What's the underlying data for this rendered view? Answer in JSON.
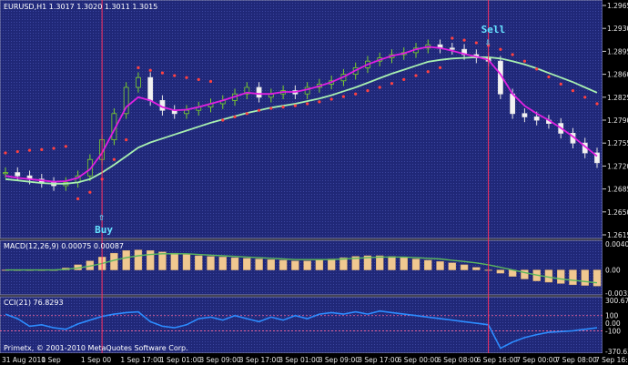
{
  "chart_data": [
    {
      "type": "candlestick",
      "panel": "main",
      "header": "EURUSD,H1  1.3017 1.3020 1.3011 1.3015",
      "price_ticks": [
        "1.2965",
        "1.2930",
        "1.2895",
        "1.2860",
        "1.2825",
        "1.2790",
        "1.2755",
        "1.2720",
        "1.2685",
        "1.2650",
        "1.2615"
      ],
      "ylim": [
        1.2615,
        1.2965
      ],
      "close": [
        1.271,
        1.2705,
        1.27,
        1.2695,
        1.269,
        1.2695,
        1.2705,
        1.273,
        1.276,
        1.28,
        1.284,
        1.2855,
        1.282,
        1.2805,
        1.28,
        1.2805,
        1.281,
        1.2815,
        1.282,
        1.283,
        1.284,
        1.2825,
        1.283,
        1.2835,
        1.283,
        1.284,
        1.2845,
        1.285,
        1.286,
        1.287,
        1.288,
        1.2885,
        1.289,
        1.2893,
        1.29,
        1.2905,
        1.29,
        1.2898,
        1.289,
        1.2885,
        1.288,
        1.283,
        1.28,
        1.2795,
        1.279,
        1.2785,
        1.277,
        1.2755,
        1.274,
        1.2725
      ],
      "sma_fast": [
        1.2705,
        1.2702,
        1.27,
        1.2698,
        1.2696,
        1.2697,
        1.2702,
        1.2715,
        1.274,
        1.2775,
        1.281,
        1.2825,
        1.282,
        1.281,
        1.2805,
        1.2806,
        1.281,
        1.2815,
        1.282,
        1.2826,
        1.2832,
        1.283,
        1.283,
        1.2833,
        1.2833,
        1.2837,
        1.2842,
        1.2848,
        1.2856,
        1.2866,
        1.2875,
        1.2882,
        1.2888,
        1.2892,
        1.2898,
        1.2902,
        1.29,
        1.2896,
        1.2891,
        1.2887,
        1.2882,
        1.286,
        1.283,
        1.2812,
        1.28,
        1.279,
        1.2778,
        1.2765,
        1.275,
        1.2735
      ],
      "sma_slow": [
        1.27,
        1.2698,
        1.2696,
        1.2694,
        1.2693,
        1.2693,
        1.2695,
        1.27,
        1.271,
        1.2722,
        1.2735,
        1.2748,
        1.2756,
        1.2762,
        1.2768,
        1.2774,
        1.278,
        1.2786,
        1.2791,
        1.2796,
        1.2801,
        1.2805,
        1.2809,
        1.2812,
        1.2815,
        1.2819,
        1.2823,
        1.2828,
        1.2834,
        1.284,
        1.2847,
        1.2854,
        1.2861,
        1.2867,
        1.2873,
        1.2879,
        1.2882,
        1.2884,
        1.2885,
        1.2886,
        1.2886,
        1.2884,
        1.288,
        1.2875,
        1.2869,
        1.2862,
        1.2855,
        1.2848,
        1.284,
        1.2832
      ],
      "psar": [
        1.274,
        1.2742,
        1.2744,
        1.2745,
        1.2747,
        1.275,
        1.267,
        1.268,
        1.27,
        1.273,
        1.276,
        1.287,
        1.2866,
        1.2862,
        1.2858,
        1.2855,
        1.2852,
        1.2849,
        1.279,
        1.2795,
        1.28,
        1.2805,
        1.2808,
        1.281,
        1.2812,
        1.2815,
        1.2818,
        1.2822,
        1.2826,
        1.283,
        1.2835,
        1.284,
        1.2846,
        1.2852,
        1.2858,
        1.2864,
        1.287,
        1.2915,
        1.2912,
        1.2908,
        1.2904,
        1.2898,
        1.289,
        1.288,
        1.2868,
        1.2856,
        1.2845,
        1.2835,
        1.2825,
        1.2815
      ],
      "signals": [
        {
          "label": "Buy",
          "arrow": "⇧",
          "index": 8
        },
        {
          "label": "Sell",
          "arrow": "⇩",
          "index": 40
        }
      ]
    },
    {
      "type": "bar",
      "panel": "macd",
      "header": "MACD(12,26,9) 0.00075 0.00087",
      "ticks": [
        "0.00403",
        "0.00",
        "-0.00359"
      ],
      "ylim": [
        -0.00359,
        0.00403
      ],
      "histogram": [
        0.0,
        0.0,
        0.0,
        0.0,
        0.0,
        0.0003,
        0.0008,
        0.0014,
        0.002,
        0.0026,
        0.003,
        0.0031,
        0.003,
        0.0028,
        0.0026,
        0.0024,
        0.0022,
        0.0021,
        0.002,
        0.0019,
        0.0018,
        0.0017,
        0.0016,
        0.0015,
        0.0014,
        0.0014,
        0.0015,
        0.0017,
        0.0019,
        0.0021,
        0.0022,
        0.0022,
        0.0021,
        0.0019,
        0.0017,
        0.0015,
        0.0013,
        0.0011,
        0.0008,
        0.0004,
        0.0,
        -0.0005,
        -0.001,
        -0.0014,
        -0.0017,
        -0.0019,
        -0.0021,
        -0.0023,
        -0.0024,
        -0.0025
      ],
      "signal": [
        0.0,
        0.0,
        0.0,
        0.0,
        0.0,
        0.0001,
        0.0003,
        0.0006,
        0.001,
        0.0015,
        0.0019,
        0.0022,
        0.0024,
        0.0025,
        0.0025,
        0.0025,
        0.0024,
        0.0023,
        0.0022,
        0.0021,
        0.002,
        0.0019,
        0.0018,
        0.0017,
        0.0016,
        0.0016,
        0.0016,
        0.0016,
        0.0017,
        0.0018,
        0.0019,
        0.002,
        0.002,
        0.002,
        0.0019,
        0.0018,
        0.0017,
        0.0015,
        0.0013,
        0.0011,
        0.0008,
        0.0004,
        0.0,
        -0.0004,
        -0.0008,
        -0.0011,
        -0.0014,
        -0.0016,
        -0.0018,
        -0.002
      ]
    },
    {
      "type": "line",
      "panel": "cci",
      "header": "CCI(21) 76.8293",
      "ticks": [
        "300.675",
        "100",
        "0.00",
        "-100",
        "-370.631"
      ],
      "ylim": [
        -370.631,
        300.675
      ],
      "values": [
        120,
        60,
        -40,
        -20,
        -60,
        -80,
        -10,
        40,
        90,
        120,
        140,
        150,
        20,
        -40,
        -60,
        -20,
        60,
        80,
        40,
        100,
        60,
        20,
        80,
        40,
        100,
        60,
        120,
        140,
        120,
        150,
        120,
        160,
        140,
        120,
        100,
        80,
        60,
        40,
        20,
        0,
        -20,
        -330,
        -250,
        -190,
        -150,
        -120,
        -110,
        -100,
        -80,
        -60
      ]
    },
    {
      "type": "axis",
      "panel": "time",
      "x_labels": [
        "31 Aug 2010",
        "1 Sep",
        "1 Sep 00",
        "1 Sep 17:00",
        "1 Sep 01:00",
        "3 Sep 09:00",
        "3 Sep 17:00",
        "3 Sep 01:00",
        "3 Sep 09:00",
        "3 Sep 17:00",
        "6 Sep 00:00",
        "6 Sep 08:00",
        "6 Sep 16:00",
        "7 Sep 00:00",
        "7 Sep 08:00",
        "7 Sep 16:00"
      ],
      "copyright": "Primetx, © 2001-2010 MetaQuotes Software Corp."
    }
  ]
}
